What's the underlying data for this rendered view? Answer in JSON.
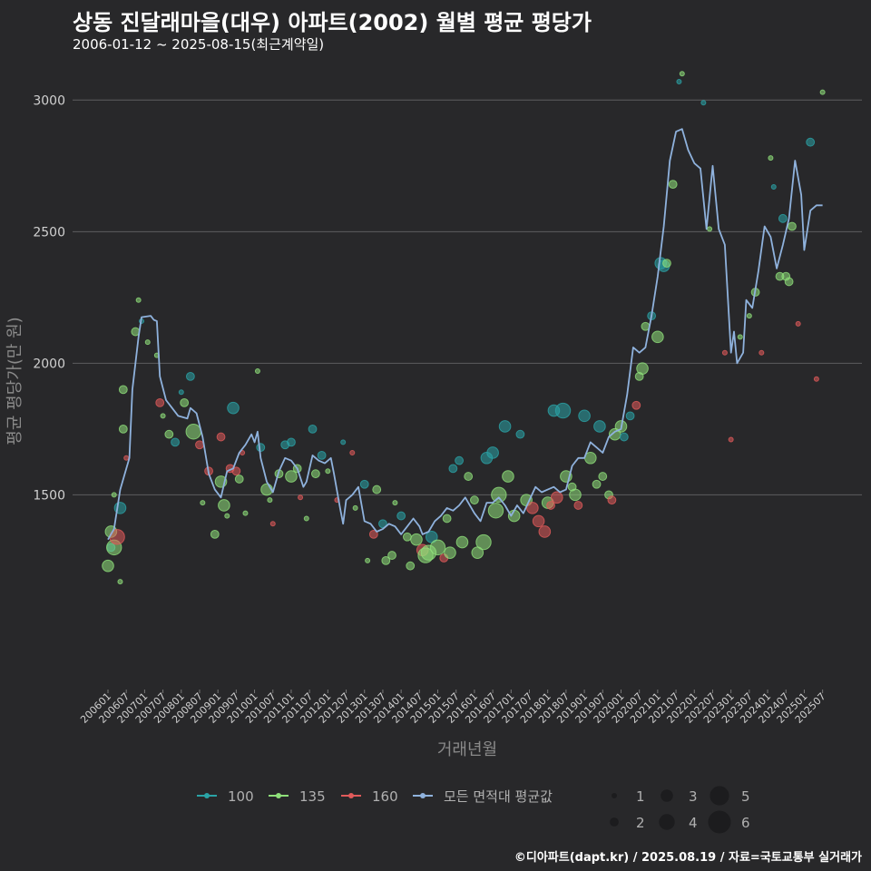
{
  "chart_data": {
    "type": "scatter",
    "title": "상동 진달래마을(대우) 아파트(2002) 월별 평균 평당가",
    "subtitle": "2006-01-12 ~ 2025-08-15(최근계약일)",
    "xlabel": "거래년월",
    "ylabel": "평균 평당가(만 원)",
    "ylim": [
      760,
      3070
    ],
    "yticks": [
      1500,
      2000,
      2500,
      3000
    ],
    "x_range": [
      "2006-01",
      "2025-08"
    ],
    "x_tick_labels": [
      "200601",
      "200607",
      "200701",
      "200707",
      "200801",
      "200807",
      "200901",
      "200907",
      "201001",
      "201007",
      "201101",
      "201107",
      "201201",
      "201207",
      "201301",
      "201307",
      "201401",
      "201407",
      "201501",
      "201507",
      "201601",
      "201607",
      "201701",
      "201707",
      "201801",
      "201807",
      "201901",
      "201907",
      "202001",
      "202007",
      "202101",
      "202107",
      "202201",
      "202207",
      "202301",
      "202307",
      "202401",
      "202407",
      "202501",
      "202507"
    ],
    "colors": {
      "100": "#2aa3a6",
      "135": "#8fe07a",
      "160": "#e05a5a",
      "avg": "#8fb2dd"
    },
    "legend": {
      "series_entries": [
        "100",
        "135",
        "160",
        "모든 면적대 평균값"
      ],
      "size_entries": [
        "1",
        "2",
        "3",
        "4",
        "5",
        "6"
      ],
      "position": "bottom"
    },
    "avg_line": [
      [
        "2006-01",
        1330
      ],
      [
        "2006-03",
        1370
      ],
      [
        "2006-05",
        1520
      ],
      [
        "2006-08",
        1640
      ],
      [
        "2006-09",
        1900
      ],
      [
        "2006-11",
        2100
      ],
      [
        "2006-12",
        2175
      ],
      [
        "2007-03",
        2180
      ],
      [
        "2007-04",
        2165
      ],
      [
        "2007-05",
        2160
      ],
      [
        "2007-06",
        1950
      ],
      [
        "2007-08",
        1860
      ],
      [
        "2007-10",
        1830
      ],
      [
        "2007-12",
        1800
      ],
      [
        "2008-03",
        1790
      ],
      [
        "2008-04",
        1830
      ],
      [
        "2008-06",
        1810
      ],
      [
        "2008-08",
        1720
      ],
      [
        "2008-10",
        1580
      ],
      [
        "2008-12",
        1520
      ],
      [
        "2009-02",
        1490
      ],
      [
        "2009-04",
        1590
      ],
      [
        "2009-06",
        1600
      ],
      [
        "2009-08",
        1660
      ],
      [
        "2009-10",
        1690
      ],
      [
        "2009-12",
        1730
      ],
      [
        "2010-01",
        1700
      ],
      [
        "2010-02",
        1740
      ],
      [
        "2010-03",
        1640
      ],
      [
        "2010-05",
        1550
      ],
      [
        "2010-07",
        1510
      ],
      [
        "2010-09",
        1590
      ],
      [
        "2010-11",
        1640
      ],
      [
        "2011-01",
        1630
      ],
      [
        "2011-03",
        1600
      ],
      [
        "2011-05",
        1530
      ],
      [
        "2011-06",
        1550
      ],
      [
        "2011-08",
        1650
      ],
      [
        "2011-10",
        1630
      ],
      [
        "2011-12",
        1620
      ],
      [
        "2012-02",
        1640
      ],
      [
        "2012-03",
        1580
      ],
      [
        "2012-05",
        1450
      ],
      [
        "2012-06",
        1390
      ],
      [
        "2012-07",
        1480
      ],
      [
        "2012-09",
        1500
      ],
      [
        "2012-11",
        1530
      ],
      [
        "2013-01",
        1400
      ],
      [
        "2013-03",
        1390
      ],
      [
        "2013-05",
        1360
      ],
      [
        "2013-07",
        1370
      ],
      [
        "2013-09",
        1390
      ],
      [
        "2013-11",
        1380
      ],
      [
        "2014-01",
        1350
      ],
      [
        "2014-03",
        1380
      ],
      [
        "2014-05",
        1410
      ],
      [
        "2014-07",
        1380
      ],
      [
        "2014-08",
        1350
      ],
      [
        "2014-10",
        1360
      ],
      [
        "2014-12",
        1400
      ],
      [
        "2015-02",
        1420
      ],
      [
        "2015-04",
        1450
      ],
      [
        "2015-06",
        1440
      ],
      [
        "2015-08",
        1460
      ],
      [
        "2015-10",
        1490
      ],
      [
        "2016-01",
        1430
      ],
      [
        "2016-03",
        1400
      ],
      [
        "2016-05",
        1470
      ],
      [
        "2016-07",
        1470
      ],
      [
        "2016-09",
        1490
      ],
      [
        "2016-11",
        1460
      ],
      [
        "2017-01",
        1420
      ],
      [
        "2017-03",
        1460
      ],
      [
        "2017-05",
        1430
      ],
      [
        "2017-07",
        1480
      ],
      [
        "2017-09",
        1530
      ],
      [
        "2017-11",
        1510
      ],
      [
        "2018-01",
        1520
      ],
      [
        "2018-03",
        1530
      ],
      [
        "2018-05",
        1510
      ],
      [
        "2018-07",
        1520
      ],
      [
        "2018-09",
        1610
      ],
      [
        "2018-11",
        1640
      ],
      [
        "2019-01",
        1640
      ],
      [
        "2019-03",
        1700
      ],
      [
        "2019-05",
        1680
      ],
      [
        "2019-07",
        1660
      ],
      [
        "2019-09",
        1720
      ],
      [
        "2019-11",
        1740
      ],
      [
        "2020-01",
        1750
      ],
      [
        "2020-03",
        1880
      ],
      [
        "2020-05",
        2060
      ],
      [
        "2020-07",
        2040
      ],
      [
        "2020-09",
        2060
      ],
      [
        "2020-11",
        2180
      ],
      [
        "2021-01",
        2330
      ],
      [
        "2021-03",
        2520
      ],
      [
        "2021-05",
        2770
      ],
      [
        "2021-07",
        2880
      ],
      [
        "2021-09",
        2890
      ],
      [
        "2021-11",
        2810
      ],
      [
        "2022-01",
        2760
      ],
      [
        "2022-03",
        2740
      ],
      [
        "2022-05",
        2510
      ],
      [
        "2022-07",
        2750
      ],
      [
        "2022-09",
        2510
      ],
      [
        "2022-11",
        2450
      ],
      [
        "2023-01",
        2040
      ],
      [
        "2023-02",
        2120
      ],
      [
        "2023-03",
        2000
      ],
      [
        "2023-05",
        2040
      ],
      [
        "2023-06",
        2240
      ],
      [
        "2023-08",
        2210
      ],
      [
        "2023-10",
        2350
      ],
      [
        "2023-12",
        2520
      ],
      [
        "2024-02",
        2480
      ],
      [
        "2024-04",
        2360
      ],
      [
        "2024-06",
        2450
      ],
      [
        "2024-08",
        2550
      ],
      [
        "2024-10",
        2770
      ],
      [
        "2024-12",
        2640
      ],
      [
        "2025-01",
        2430
      ],
      [
        "2025-03",
        2580
      ],
      [
        "2025-05",
        2600
      ],
      [
        "2025-07",
        2600
      ]
    ],
    "points": [
      [
        "2006-01",
        1230,
        135,
        3
      ],
      [
        "2006-02",
        1300,
        100,
        2
      ],
      [
        "2006-02",
        1360,
        135,
        3
      ],
      [
        "2006-03",
        1300,
        135,
        4
      ],
      [
        "2006-04",
        1340,
        160,
        4
      ],
      [
        "2006-05",
        1450,
        100,
        3
      ],
      [
        "2006-06",
        1900,
        135,
        2
      ],
      [
        "2006-06",
        1750,
        135,
        2
      ],
      [
        "2006-03",
        1500,
        135,
        1
      ],
      [
        "2006-07",
        1640,
        160,
        1
      ],
      [
        "2006-05",
        1170,
        135,
        1
      ],
      [
        "2006-10",
        2120,
        135,
        2
      ],
      [
        "2006-12",
        2160,
        100,
        1
      ],
      [
        "2007-02",
        2080,
        135,
        1
      ],
      [
        "2006-11",
        2240,
        135,
        1
      ],
      [
        "2007-06",
        1850,
        160,
        2
      ],
      [
        "2007-07",
        1800,
        135,
        1
      ],
      [
        "2007-05",
        2030,
        135,
        1
      ],
      [
        "2007-09",
        1730,
        135,
        2
      ],
      [
        "2007-11",
        1700,
        100,
        2
      ],
      [
        "2008-02",
        1850,
        135,
        2
      ],
      [
        "2008-01",
        1890,
        100,
        1
      ],
      [
        "2008-04",
        1950,
        100,
        2
      ],
      [
        "2008-05",
        1740,
        135,
        4
      ],
      [
        "2008-07",
        1690,
        160,
        2
      ],
      [
        "2008-08",
        1470,
        135,
        1
      ],
      [
        "2008-10",
        1590,
        160,
        2
      ],
      [
        "2008-12",
        1350,
        135,
        2
      ],
      [
        "2009-02",
        1720,
        160,
        2
      ],
      [
        "2009-02",
        1550,
        135,
        3
      ],
      [
        "2009-03",
        1460,
        135,
        3
      ],
      [
        "2009-05",
        1600,
        160,
        2
      ],
      [
        "2009-06",
        1830,
        100,
        3
      ],
      [
        "2009-07",
        1590,
        160,
        2
      ],
      [
        "2009-04",
        1420,
        135,
        1
      ],
      [
        "2009-08",
        1560,
        135,
        2
      ],
      [
        "2009-09",
        1660,
        160,
        1
      ],
      [
        "2009-10",
        1430,
        135,
        1
      ],
      [
        "2010-02",
        1970,
        135,
        1
      ],
      [
        "2010-03",
        1680,
        100,
        2
      ],
      [
        "2010-05",
        1520,
        135,
        3
      ],
      [
        "2010-06",
        1480,
        135,
        1
      ],
      [
        "2010-07",
        1390,
        160,
        1
      ],
      [
        "2010-09",
        1580,
        135,
        2
      ],
      [
        "2010-11",
        1690,
        100,
        2
      ],
      [
        "2011-01",
        1700,
        100,
        2
      ],
      [
        "2011-01",
        1570,
        135,
        3
      ],
      [
        "2011-03",
        1600,
        135,
        2
      ],
      [
        "2011-04",
        1490,
        160,
        1
      ],
      [
        "2011-06",
        1410,
        135,
        1
      ],
      [
        "2011-08",
        1750,
        100,
        2
      ],
      [
        "2011-09",
        1580,
        135,
        2
      ],
      [
        "2011-11",
        1650,
        100,
        2
      ],
      [
        "2012-01",
        1590,
        135,
        1
      ],
      [
        "2012-04",
        1480,
        160,
        1
      ],
      [
        "2012-06",
        1700,
        100,
        1
      ],
      [
        "2012-09",
        1660,
        160,
        1
      ],
      [
        "2012-10",
        1450,
        135,
        1
      ],
      [
        "2013-01",
        1540,
        100,
        2
      ],
      [
        "2013-02",
        1250,
        135,
        1
      ],
      [
        "2013-04",
        1350,
        160,
        2
      ],
      [
        "2013-05",
        1520,
        135,
        2
      ],
      [
        "2013-07",
        1390,
        100,
        2
      ],
      [
        "2013-08",
        1250,
        135,
        2
      ],
      [
        "2013-10",
        1270,
        135,
        2
      ],
      [
        "2013-11",
        1470,
        135,
        1
      ],
      [
        "2014-01",
        1420,
        100,
        2
      ],
      [
        "2014-03",
        1340,
        135,
        2
      ],
      [
        "2014-04",
        1230,
        135,
        2
      ],
      [
        "2014-06",
        1330,
        135,
        3
      ],
      [
        "2014-08",
        1290,
        160,
        3
      ],
      [
        "2014-09",
        1270,
        135,
        4
      ],
      [
        "2014-10",
        1280,
        135,
        4
      ],
      [
        "2014-11",
        1340,
        100,
        3
      ],
      [
        "2015-01",
        1300,
        135,
        4
      ],
      [
        "2015-03",
        1260,
        160,
        2
      ],
      [
        "2015-04",
        1410,
        135,
        2
      ],
      [
        "2015-05",
        1280,
        135,
        3
      ],
      [
        "2015-06",
        1600,
        100,
        2
      ],
      [
        "2015-08",
        1630,
        100,
        2
      ],
      [
        "2015-09",
        1320,
        135,
        3
      ],
      [
        "2015-11",
        1570,
        135,
        2
      ],
      [
        "2016-01",
        1480,
        135,
        2
      ],
      [
        "2016-02",
        1280,
        135,
        3
      ],
      [
        "2016-04",
        1320,
        135,
        4
      ],
      [
        "2016-05",
        1640,
        100,
        3
      ],
      [
        "2016-07",
        1660,
        100,
        3
      ],
      [
        "2016-08",
        1440,
        135,
        4
      ],
      [
        "2016-09",
        1500,
        135,
        4
      ],
      [
        "2016-11",
        1760,
        100,
        3
      ],
      [
        "2016-12",
        1570,
        135,
        3
      ],
      [
        "2017-02",
        1420,
        135,
        3
      ],
      [
        "2017-04",
        1730,
        100,
        2
      ],
      [
        "2017-06",
        1480,
        135,
        3
      ],
      [
        "2017-08",
        1450,
        160,
        3
      ],
      [
        "2017-10",
        1400,
        160,
        3
      ],
      [
        "2017-12",
        1360,
        160,
        3
      ],
      [
        "2018-01",
        1470,
        135,
        3
      ],
      [
        "2018-02",
        1460,
        160,
        2
      ],
      [
        "2018-03",
        1820,
        100,
        3
      ],
      [
        "2018-04",
        1490,
        160,
        3
      ],
      [
        "2018-06",
        1820,
        100,
        4
      ],
      [
        "2018-07",
        1570,
        135,
        3
      ],
      [
        "2018-09",
        1530,
        135,
        2
      ],
      [
        "2018-10",
        1500,
        135,
        3
      ],
      [
        "2018-11",
        1460,
        160,
        2
      ],
      [
        "2019-01",
        1800,
        100,
        3
      ],
      [
        "2019-03",
        1640,
        135,
        3
      ],
      [
        "2019-05",
        1540,
        135,
        2
      ],
      [
        "2019-06",
        1760,
        100,
        3
      ],
      [
        "2019-07",
        1570,
        135,
        2
      ],
      [
        "2019-09",
        1500,
        135,
        2
      ],
      [
        "2019-10",
        1480,
        160,
        2
      ],
      [
        "2019-11",
        1730,
        135,
        3
      ],
      [
        "2020-01",
        1760,
        135,
        3
      ],
      [
        "2020-02",
        1720,
        100,
        2
      ],
      [
        "2020-04",
        1800,
        100,
        2
      ],
      [
        "2020-06",
        1840,
        160,
        2
      ],
      [
        "2020-07",
        1950,
        135,
        2
      ],
      [
        "2020-08",
        1980,
        135,
        3
      ],
      [
        "2020-09",
        2140,
        135,
        2
      ],
      [
        "2020-11",
        2180,
        100,
        2
      ],
      [
        "2021-01",
        2100,
        135,
        3
      ],
      [
        "2021-02",
        2380,
        100,
        3
      ],
      [
        "2021-03",
        2370,
        100,
        3
      ],
      [
        "2021-04",
        2380,
        135,
        2
      ],
      [
        "2021-06",
        2680,
        135,
        2
      ],
      [
        "2021-09",
        3100,
        135,
        1
      ],
      [
        "2021-08",
        3070,
        100,
        1
      ],
      [
        "2022-04",
        2990,
        100,
        1
      ],
      [
        "2022-06",
        2510,
        135,
        1
      ],
      [
        "2022-11",
        2040,
        160,
        1
      ],
      [
        "2023-01",
        1710,
        160,
        1
      ],
      [
        "2023-04",
        2100,
        135,
        1
      ],
      [
        "2023-07",
        2180,
        135,
        1
      ],
      [
        "2023-09",
        2270,
        135,
        2
      ],
      [
        "2023-11",
        2040,
        160,
        1
      ],
      [
        "2024-02",
        2780,
        135,
        1
      ],
      [
        "2024-03",
        2670,
        100,
        1
      ],
      [
        "2024-05",
        2330,
        135,
        2
      ],
      [
        "2024-06",
        2550,
        100,
        2
      ],
      [
        "2024-07",
        2330,
        135,
        2
      ],
      [
        "2024-08",
        2310,
        135,
        2
      ],
      [
        "2024-09",
        2520,
        135,
        2
      ],
      [
        "2024-11",
        2150,
        160,
        1
      ],
      [
        "2025-03",
        2840,
        100,
        2
      ],
      [
        "2025-05",
        1940,
        160,
        1
      ],
      [
        "2025-07",
        3030,
        135,
        1
      ]
    ]
  },
  "footer": "©디아파트(dapt.kr) / 2025.08.19 / 자료=국토교통부 실거래가"
}
